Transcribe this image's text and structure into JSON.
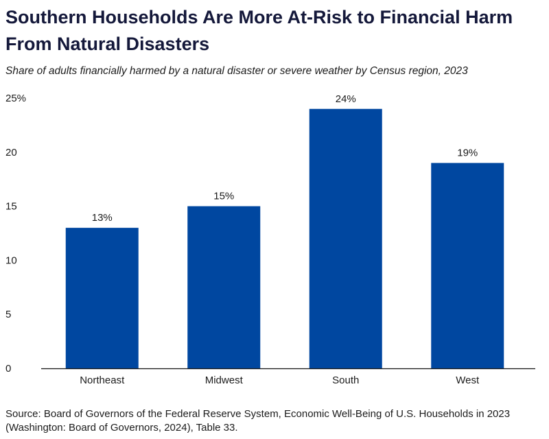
{
  "title": "Southern Households Are More At-Risk to Financial Harm From Natural Disasters",
  "subtitle": "Share of adults financially harmed by a natural disaster or severe weather by Census region, 2023",
  "source": "Source: Board of Governors of the Federal Reserve System, Economic Well-Being of U.S. Households in 2023 (Washington: Board of Governors, 2024), Table 33.",
  "colors": {
    "bar": "#0047a0",
    "axis": "#111111"
  },
  "chart_data": {
    "type": "bar",
    "categories": [
      "Northeast",
      "Midwest",
      "South",
      "West"
    ],
    "values": [
      13,
      15,
      24,
      19
    ],
    "data_labels": [
      "13%",
      "15%",
      "24%",
      "19%"
    ],
    "ytick_labels": [
      "0",
      "5",
      "10",
      "15",
      "20",
      "25%"
    ],
    "ylim": [
      0,
      25
    ],
    "grid": false,
    "legend": "none"
  }
}
